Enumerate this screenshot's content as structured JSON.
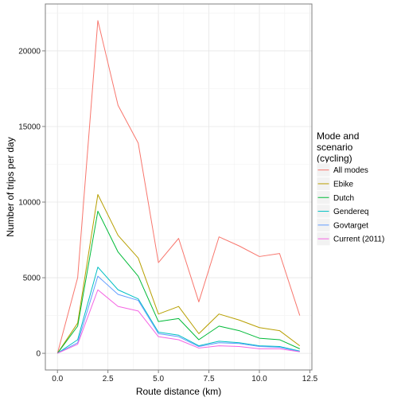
{
  "chart_data": {
    "type": "line",
    "title": "",
    "xlabel": "Route distance (km)",
    "ylabel": "Number of trips per day",
    "xlim": [
      -0.6,
      12.6
    ],
    "ylim": [
      -1100,
      23100
    ],
    "xticks": [
      0.0,
      2.5,
      5.0,
      7.5,
      10.0,
      12.5
    ],
    "xtick_labels": [
      "0.0",
      "2.5",
      "5.0",
      "7.5",
      "10.0",
      "12.5"
    ],
    "yticks": [
      0,
      5000,
      10000,
      15000,
      20000
    ],
    "ytick_labels": [
      "0",
      "5000",
      "10000",
      "15000",
      "20000"
    ],
    "grid": true,
    "legend": {
      "title_lines": [
        "Mode and",
        "scenario",
        "(cycling)"
      ],
      "position": "right"
    },
    "x": [
      0,
      1,
      2,
      3,
      4,
      5,
      6,
      7,
      8,
      9,
      10,
      11,
      12
    ],
    "series": [
      {
        "name": "All modes",
        "color": "#F8766D",
        "values": [
          0,
          5000,
          22000,
          16400,
          13900,
          6000,
          7600,
          3400,
          7700,
          7100,
          6400,
          6600,
          2500
        ]
      },
      {
        "name": "Ebike",
        "color": "#B79F00",
        "values": [
          0,
          2000,
          10500,
          7800,
          6300,
          2600,
          3100,
          1300,
          2600,
          2200,
          1700,
          1500,
          500
        ]
      },
      {
        "name": "Dutch",
        "color": "#00BA38",
        "values": [
          0,
          1800,
          9400,
          6700,
          5100,
          2100,
          2300,
          900,
          1800,
          1500,
          1000,
          900,
          300
        ]
      },
      {
        "name": "Gendereq",
        "color": "#00BFC4",
        "values": [
          0,
          900,
          5700,
          4200,
          3600,
          1400,
          1200,
          500,
          800,
          700,
          500,
          450,
          150
        ]
      },
      {
        "name": "Govtarget",
        "color": "#619CFF",
        "values": [
          0,
          700,
          5100,
          3900,
          3500,
          1300,
          1100,
          450,
          700,
          650,
          450,
          400,
          120
        ]
      },
      {
        "name": "Current (2011)",
        "color": "#F564E3",
        "values": [
          0,
          600,
          4200,
          3100,
          2800,
          1100,
          900,
          350,
          500,
          450,
          300,
          300,
          100
        ]
      }
    ]
  }
}
